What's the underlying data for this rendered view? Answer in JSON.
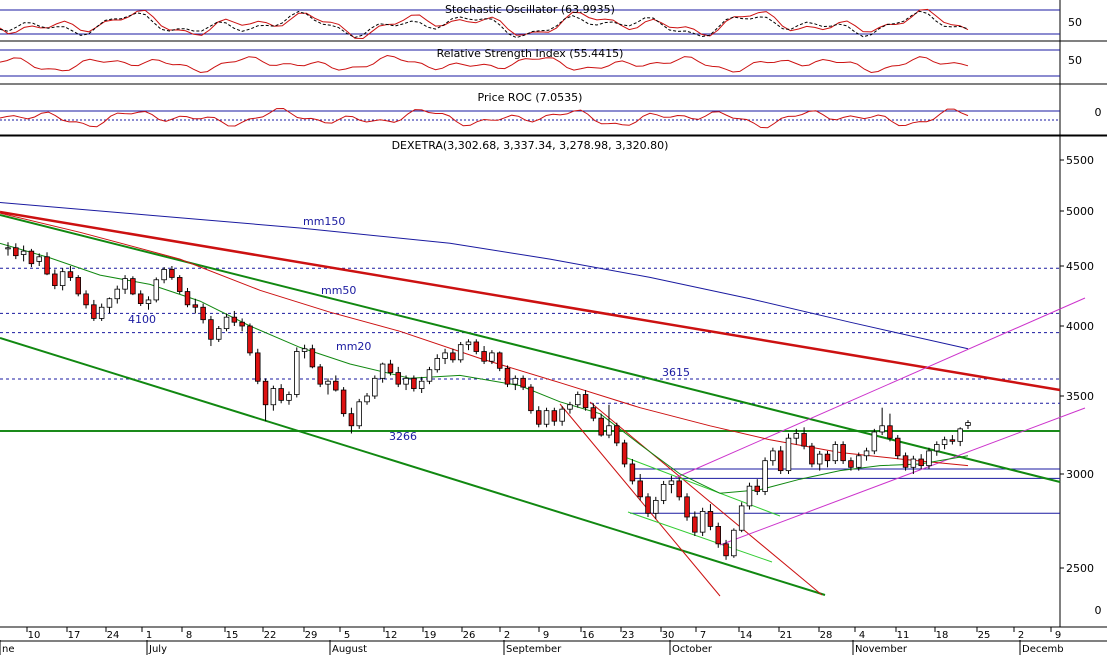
{
  "chart_data": {
    "type": "line",
    "title": "DEXETRA(3,302.68, 3,337.34, 3,278.98, 3,320.80)",
    "xlabel": "",
    "ylabel": "",
    "ylim": [
      2400,
      5600
    ],
    "scale": "log",
    "grid": false,
    "price_ticks": [
      5500,
      5000,
      4500,
      4000,
      3500,
      3000,
      2500
    ],
    "x_day_ticks": [
      "10",
      "17",
      "24",
      "1",
      "8",
      "15",
      "22",
      "29",
      "5",
      "12",
      "19",
      "26",
      "2",
      "9",
      "16",
      "23",
      "30",
      "7",
      "14",
      "21",
      "28",
      "4",
      "11",
      "18",
      "25",
      "2",
      "9"
    ],
    "x_month_labels": [
      "ne",
      "July",
      "August",
      "September",
      "October",
      "November",
      "Decemb"
    ],
    "bottom_axis_zero": "0",
    "indicators": [
      {
        "name": "Stochastic Oscillator",
        "label": "Stochastic Oscillator (63.9935)",
        "value": 63.9935,
        "tick": "50"
      },
      {
        "name": "Relative Strength Index",
        "label": "Relative Strength Index (55.4415)",
        "value": 55.4415,
        "tick": "50"
      },
      {
        "name": "Price ROC",
        "label": "Price ROC (7.0535)",
        "value": 7.0535,
        "tick": "0"
      }
    ],
    "ohlc": {
      "open": 3302.68,
      "high": 3337.34,
      "low": 3278.98,
      "close": 3320.8
    },
    "annotations": [
      {
        "text": "mm150",
        "color": "#1a1aa0"
      },
      {
        "text": "mm50",
        "color": "#1a1aa0"
      },
      {
        "text": "mm20",
        "color": "#1a1aa0"
      },
      {
        "text": "4100",
        "color": "#1a1aa0"
      },
      {
        "text": "3615",
        "color": "#1a1aa0"
      },
      {
        "text": "3266",
        "color": "#1a1aa0"
      }
    ],
    "horizontal_levels": [
      {
        "value": 4480,
        "style": "dashed",
        "color": "#1a1aa0"
      },
      {
        "value": 4100,
        "style": "dashed",
        "color": "#1a1aa0"
      },
      {
        "value": 3950,
        "style": "dashed",
        "color": "#1a1aa0"
      },
      {
        "value": 3615,
        "style": "dashed",
        "color": "#1a1aa0"
      },
      {
        "value": 3450,
        "style": "dashed",
        "color": "#1a1aa0"
      },
      {
        "value": 3266,
        "style": "solid",
        "color": "#1a8a1a"
      },
      {
        "value": 3030,
        "style": "solid",
        "color": "#1a1aa0"
      },
      {
        "value": 2975,
        "style": "solid",
        "color": "#1a1aa0"
      },
      {
        "value": 2780,
        "style": "solid",
        "color": "#1a1aa0"
      }
    ],
    "series": [
      {
        "name": "mm150",
        "color": "#1a1aa0",
        "values": [
          [
            0,
            5080
          ],
          [
            150,
            4960
          ],
          [
            300,
            4840
          ],
          [
            450,
            4700
          ],
          [
            550,
            4560
          ],
          [
            650,
            4400
          ],
          [
            750,
            4220
          ],
          [
            850,
            4030
          ],
          [
            968,
            3830
          ]
        ]
      },
      {
        "name": "mm50",
        "color": "#cc1111",
        "values": [
          [
            0,
            4980
          ],
          [
            80,
            4800
          ],
          [
            180,
            4560
          ],
          [
            260,
            4290
          ],
          [
            330,
            4110
          ],
          [
            400,
            3960
          ],
          [
            480,
            3760
          ],
          [
            560,
            3590
          ],
          [
            640,
            3420
          ],
          [
            710,
            3300
          ],
          [
            770,
            3210
          ],
          [
            840,
            3130
          ],
          [
            900,
            3090
          ],
          [
            968,
            3050
          ]
        ]
      },
      {
        "name": "mm20",
        "color": "#118811",
        "values": [
          [
            0,
            4700
          ],
          [
            50,
            4570
          ],
          [
            100,
            4420
          ],
          [
            150,
            4340
          ],
          [
            200,
            4200
          ],
          [
            250,
            4000
          ],
          [
            300,
            3840
          ],
          [
            350,
            3720
          ],
          [
            410,
            3620
          ],
          [
            460,
            3640
          ],
          [
            520,
            3570
          ],
          [
            560,
            3460
          ],
          [
            600,
            3380
          ],
          [
            640,
            3180
          ],
          [
            680,
            3000
          ],
          [
            720,
            2890
          ],
          [
            760,
            2910
          ],
          [
            800,
            2970
          ],
          [
            840,
            3020
          ],
          [
            880,
            3050
          ],
          [
            920,
            3060
          ],
          [
            968,
            3110
          ]
        ]
      }
    ],
    "candles": [
      {
        "o": 4650,
        "h": 4710,
        "l": 4590,
        "c": 4660
      },
      {
        "o": 4660,
        "h": 4700,
        "l": 4560,
        "c": 4590
      },
      {
        "o": 4600,
        "h": 4680,
        "l": 4540,
        "c": 4630
      },
      {
        "o": 4630,
        "h": 4650,
        "l": 4490,
        "c": 4520
      },
      {
        "o": 4540,
        "h": 4610,
        "l": 4500,
        "c": 4580
      },
      {
        "o": 4580,
        "h": 4620,
        "l": 4420,
        "c": 4430
      },
      {
        "o": 4430,
        "h": 4470,
        "l": 4300,
        "c": 4330
      },
      {
        "o": 4330,
        "h": 4480,
        "l": 4290,
        "c": 4450
      },
      {
        "o": 4450,
        "h": 4500,
        "l": 4370,
        "c": 4400
      },
      {
        "o": 4400,
        "h": 4420,
        "l": 4240,
        "c": 4260
      },
      {
        "o": 4260,
        "h": 4290,
        "l": 4140,
        "c": 4170
      },
      {
        "o": 4170,
        "h": 4210,
        "l": 4040,
        "c": 4060
      },
      {
        "o": 4060,
        "h": 4180,
        "l": 4040,
        "c": 4150
      },
      {
        "o": 4150,
        "h": 4230,
        "l": 4100,
        "c": 4220
      },
      {
        "o": 4220,
        "h": 4330,
        "l": 4180,
        "c": 4300
      },
      {
        "o": 4300,
        "h": 4420,
        "l": 4260,
        "c": 4390
      },
      {
        "o": 4390,
        "h": 4410,
        "l": 4250,
        "c": 4260
      },
      {
        "o": 4260,
        "h": 4290,
        "l": 4160,
        "c": 4180
      },
      {
        "o": 4180,
        "h": 4240,
        "l": 4130,
        "c": 4210
      },
      {
        "o": 4210,
        "h": 4400,
        "l": 4190,
        "c": 4380
      },
      {
        "o": 4380,
        "h": 4490,
        "l": 4350,
        "c": 4470
      },
      {
        "o": 4470,
        "h": 4500,
        "l": 4380,
        "c": 4400
      },
      {
        "o": 4400,
        "h": 4420,
        "l": 4260,
        "c": 4280
      },
      {
        "o": 4280,
        "h": 4310,
        "l": 4150,
        "c": 4170
      },
      {
        "o": 4170,
        "h": 4220,
        "l": 4100,
        "c": 4150
      },
      {
        "o": 4150,
        "h": 4180,
        "l": 4020,
        "c": 4050
      },
      {
        "o": 4050,
        "h": 4080,
        "l": 3850,
        "c": 3900
      },
      {
        "o": 3900,
        "h": 4000,
        "l": 3880,
        "c": 3980
      },
      {
        "o": 3980,
        "h": 4100,
        "l": 3960,
        "c": 4070
      },
      {
        "o": 4070,
        "h": 4120,
        "l": 4000,
        "c": 4030
      },
      {
        "o": 4030,
        "h": 4060,
        "l": 3960,
        "c": 4000
      },
      {
        "o": 4000,
        "h": 4020,
        "l": 3780,
        "c": 3800
      },
      {
        "o": 3800,
        "h": 3830,
        "l": 3580,
        "c": 3600
      },
      {
        "o": 3600,
        "h": 3620,
        "l": 3330,
        "c": 3440
      },
      {
        "o": 3440,
        "h": 3570,
        "l": 3400,
        "c": 3550
      },
      {
        "o": 3550,
        "h": 3580,
        "l": 3450,
        "c": 3470
      },
      {
        "o": 3470,
        "h": 3530,
        "l": 3440,
        "c": 3510
      },
      {
        "o": 3510,
        "h": 3840,
        "l": 3490,
        "c": 3810
      },
      {
        "o": 3810,
        "h": 3860,
        "l": 3760,
        "c": 3830
      },
      {
        "o": 3830,
        "h": 3860,
        "l": 3690,
        "c": 3700
      },
      {
        "o": 3700,
        "h": 3720,
        "l": 3560,
        "c": 3580
      },
      {
        "o": 3580,
        "h": 3620,
        "l": 3510,
        "c": 3600
      },
      {
        "o": 3600,
        "h": 3640,
        "l": 3530,
        "c": 3540
      },
      {
        "o": 3540,
        "h": 3560,
        "l": 3360,
        "c": 3380
      },
      {
        "o": 3380,
        "h": 3420,
        "l": 3250,
        "c": 3300
      },
      {
        "o": 3300,
        "h": 3480,
        "l": 3280,
        "c": 3460
      },
      {
        "o": 3460,
        "h": 3520,
        "l": 3440,
        "c": 3500
      },
      {
        "o": 3500,
        "h": 3640,
        "l": 3480,
        "c": 3620
      },
      {
        "o": 3620,
        "h": 3730,
        "l": 3590,
        "c": 3720
      },
      {
        "o": 3720,
        "h": 3750,
        "l": 3640,
        "c": 3660
      },
      {
        "o": 3660,
        "h": 3700,
        "l": 3560,
        "c": 3580
      },
      {
        "o": 3580,
        "h": 3640,
        "l": 3540,
        "c": 3620
      },
      {
        "o": 3620,
        "h": 3640,
        "l": 3530,
        "c": 3550
      },
      {
        "o": 3550,
        "h": 3630,
        "l": 3520,
        "c": 3600
      },
      {
        "o": 3600,
        "h": 3700,
        "l": 3580,
        "c": 3680
      },
      {
        "o": 3680,
        "h": 3790,
        "l": 3660,
        "c": 3760
      },
      {
        "o": 3760,
        "h": 3830,
        "l": 3720,
        "c": 3800
      },
      {
        "o": 3800,
        "h": 3830,
        "l": 3730,
        "c": 3750
      },
      {
        "o": 3750,
        "h": 3880,
        "l": 3730,
        "c": 3860
      },
      {
        "o": 3860,
        "h": 3900,
        "l": 3820,
        "c": 3880
      },
      {
        "o": 3880,
        "h": 3900,
        "l": 3790,
        "c": 3810
      },
      {
        "o": 3810,
        "h": 3850,
        "l": 3720,
        "c": 3740
      },
      {
        "o": 3740,
        "h": 3820,
        "l": 3720,
        "c": 3800
      },
      {
        "o": 3800,
        "h": 3810,
        "l": 3670,
        "c": 3690
      },
      {
        "o": 3690,
        "h": 3710,
        "l": 3560,
        "c": 3580
      },
      {
        "o": 3580,
        "h": 3640,
        "l": 3540,
        "c": 3620
      },
      {
        "o": 3620,
        "h": 3640,
        "l": 3540,
        "c": 3560
      },
      {
        "o": 3560,
        "h": 3580,
        "l": 3380,
        "c": 3400
      },
      {
        "o": 3400,
        "h": 3430,
        "l": 3290,
        "c": 3310
      },
      {
        "o": 3310,
        "h": 3420,
        "l": 3290,
        "c": 3400
      },
      {
        "o": 3400,
        "h": 3420,
        "l": 3300,
        "c": 3330
      },
      {
        "o": 3330,
        "h": 3430,
        "l": 3300,
        "c": 3410
      },
      {
        "o": 3410,
        "h": 3460,
        "l": 3380,
        "c": 3440
      },
      {
        "o": 3440,
        "h": 3530,
        "l": 3420,
        "c": 3510
      },
      {
        "o": 3510,
        "h": 3540,
        "l": 3400,
        "c": 3420
      },
      {
        "o": 3420,
        "h": 3450,
        "l": 3330,
        "c": 3350
      },
      {
        "o": 3350,
        "h": 3380,
        "l": 3230,
        "c": 3240
      },
      {
        "o": 3240,
        "h": 3440,
        "l": 3220,
        "c": 3300
      },
      {
        "o": 3300,
        "h": 3320,
        "l": 3170,
        "c": 3190
      },
      {
        "o": 3190,
        "h": 3210,
        "l": 3040,
        "c": 3060
      },
      {
        "o": 3060,
        "h": 3090,
        "l": 2940,
        "c": 2960
      },
      {
        "o": 2960,
        "h": 3000,
        "l": 2850,
        "c": 2870
      },
      {
        "o": 2870,
        "h": 2890,
        "l": 2760,
        "c": 2780
      },
      {
        "o": 2780,
        "h": 2870,
        "l": 2750,
        "c": 2850
      },
      {
        "o": 2850,
        "h": 2960,
        "l": 2830,
        "c": 2940
      },
      {
        "o": 2940,
        "h": 2990,
        "l": 2890,
        "c": 2960
      },
      {
        "o": 2960,
        "h": 2980,
        "l": 2850,
        "c": 2870
      },
      {
        "o": 2870,
        "h": 2890,
        "l": 2740,
        "c": 2760
      },
      {
        "o": 2760,
        "h": 2790,
        "l": 2660,
        "c": 2680
      },
      {
        "o": 2680,
        "h": 2810,
        "l": 2660,
        "c": 2790
      },
      {
        "o": 2790,
        "h": 2830,
        "l": 2690,
        "c": 2710
      },
      {
        "o": 2710,
        "h": 2730,
        "l": 2600,
        "c": 2620
      },
      {
        "o": 2620,
        "h": 2640,
        "l": 2540,
        "c": 2560
      },
      {
        "o": 2560,
        "h": 2700,
        "l": 2550,
        "c": 2690
      },
      {
        "o": 2690,
        "h": 2840,
        "l": 2680,
        "c": 2820
      },
      {
        "o": 2820,
        "h": 2950,
        "l": 2800,
        "c": 2930
      },
      {
        "o": 2930,
        "h": 2970,
        "l": 2880,
        "c": 2900
      },
      {
        "o": 2900,
        "h": 3100,
        "l": 2880,
        "c": 3080
      },
      {
        "o": 3080,
        "h": 3160,
        "l": 3050,
        "c": 3140
      },
      {
        "o": 3140,
        "h": 3170,
        "l": 3000,
        "c": 3020
      },
      {
        "o": 3020,
        "h": 3250,
        "l": 3000,
        "c": 3220
      },
      {
        "o": 3220,
        "h": 3280,
        "l": 3180,
        "c": 3250
      },
      {
        "o": 3250,
        "h": 3290,
        "l": 3150,
        "c": 3170
      },
      {
        "o": 3170,
        "h": 3190,
        "l": 3040,
        "c": 3060
      },
      {
        "o": 3060,
        "h": 3140,
        "l": 3020,
        "c": 3120
      },
      {
        "o": 3120,
        "h": 3140,
        "l": 3040,
        "c": 3080
      },
      {
        "o": 3080,
        "h": 3200,
        "l": 3060,
        "c": 3180
      },
      {
        "o": 3180,
        "h": 3200,
        "l": 3060,
        "c": 3080
      },
      {
        "o": 3080,
        "h": 3100,
        "l": 3020,
        "c": 3040
      },
      {
        "o": 3040,
        "h": 3130,
        "l": 3020,
        "c": 3110
      },
      {
        "o": 3110,
        "h": 3160,
        "l": 3080,
        "c": 3140
      },
      {
        "o": 3140,
        "h": 3280,
        "l": 3120,
        "c": 3260
      },
      {
        "o": 3260,
        "h": 3420,
        "l": 3240,
        "c": 3300
      },
      {
        "o": 3300,
        "h": 3380,
        "l": 3200,
        "c": 3220
      },
      {
        "o": 3220,
        "h": 3240,
        "l": 3090,
        "c": 3110
      },
      {
        "o": 3110,
        "h": 3130,
        "l": 3020,
        "c": 3040
      },
      {
        "o": 3040,
        "h": 3110,
        "l": 3000,
        "c": 3090
      },
      {
        "o": 3090,
        "h": 3120,
        "l": 3030,
        "c": 3050
      },
      {
        "o": 3050,
        "h": 3160,
        "l": 3030,
        "c": 3140
      },
      {
        "o": 3140,
        "h": 3200,
        "l": 3110,
        "c": 3180
      },
      {
        "o": 3180,
        "h": 3230,
        "l": 3150,
        "c": 3210
      },
      {
        "o": 3210,
        "h": 3240,
        "l": 3180,
        "c": 3200
      },
      {
        "o": 3200,
        "h": 3290,
        "l": 3170,
        "c": 3280
      },
      {
        "o": 3302.68,
        "h": 3337.34,
        "l": 3278.98,
        "c": 3320.8
      }
    ]
  }
}
